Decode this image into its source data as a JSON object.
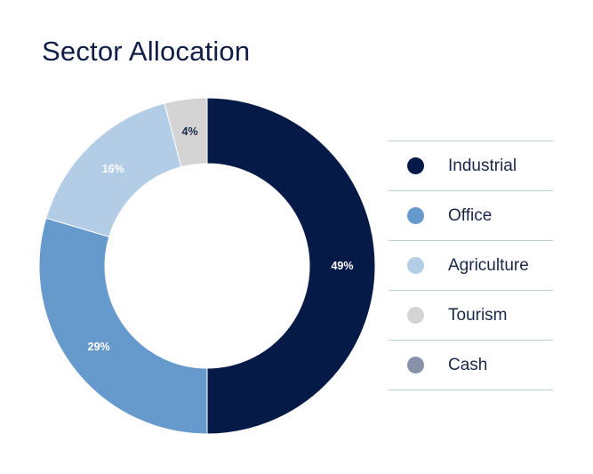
{
  "chart_data": {
    "type": "pie",
    "title": "Sector Allocation",
    "donut": true,
    "slices": [
      {
        "name": "Industrial",
        "value": 49,
        "label": "49%",
        "color": "#061a47",
        "label_color": "#ffffff"
      },
      {
        "name": "Office",
        "value": 29,
        "label": "29%",
        "color": "#6699cc",
        "label_color": "#ffffff"
      },
      {
        "name": "Agriculture",
        "value": 16,
        "label": "16%",
        "color": "#b3cde6",
        "label_color": "#ffffff"
      },
      {
        "name": "Tourism",
        "value": 4,
        "label": "4%",
        "color": "#d4d4d4",
        "label_color": "#1b2748"
      },
      {
        "name": "Cash",
        "value": 0,
        "label": "",
        "color": "#8792aa",
        "label_color": "#ffffff"
      }
    ],
    "start_angle_deg": 0,
    "direction": "clockwise",
    "legend_position": "right"
  }
}
